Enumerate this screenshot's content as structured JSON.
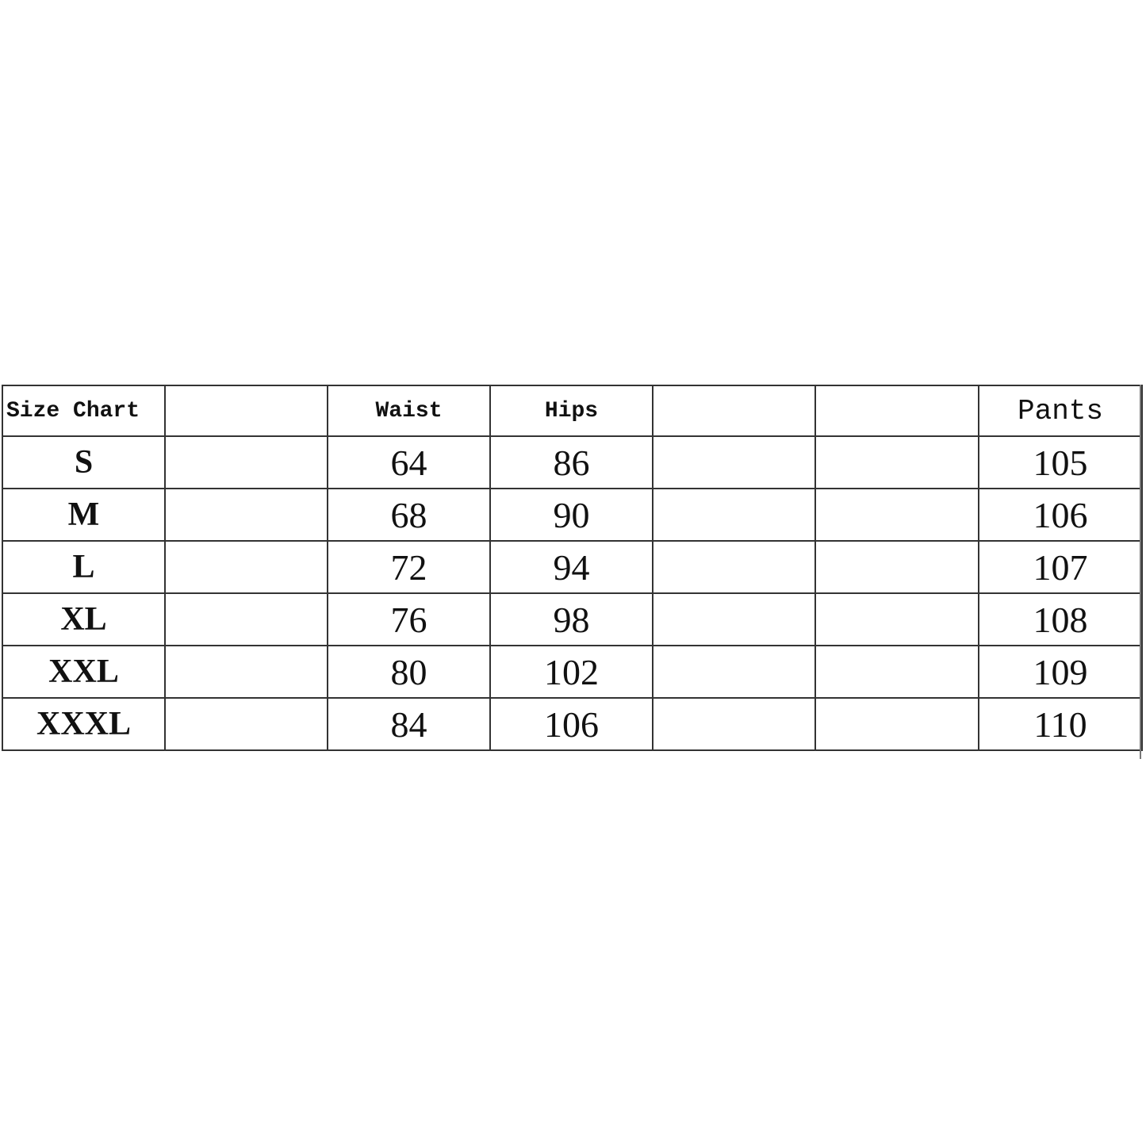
{
  "table": {
    "headers": [
      "Size Chart",
      "",
      "Waist",
      "Hips",
      "",
      "",
      "Pants"
    ],
    "rows": [
      {
        "size": "S",
        "waist": "64",
        "hips": "86",
        "pants": "105"
      },
      {
        "size": "M",
        "waist": "68",
        "hips": "90",
        "pants": "106"
      },
      {
        "size": "L",
        "waist": "72",
        "hips": "94",
        "pants": "107"
      },
      {
        "size": "XL",
        "waist": "76",
        "hips": "98",
        "pants": "108"
      },
      {
        "size": "XXL",
        "waist": "80",
        "hips": "102",
        "pants": "109"
      },
      {
        "size": "XXXL",
        "waist": "84",
        "hips": "106",
        "pants": "110"
      }
    ]
  }
}
